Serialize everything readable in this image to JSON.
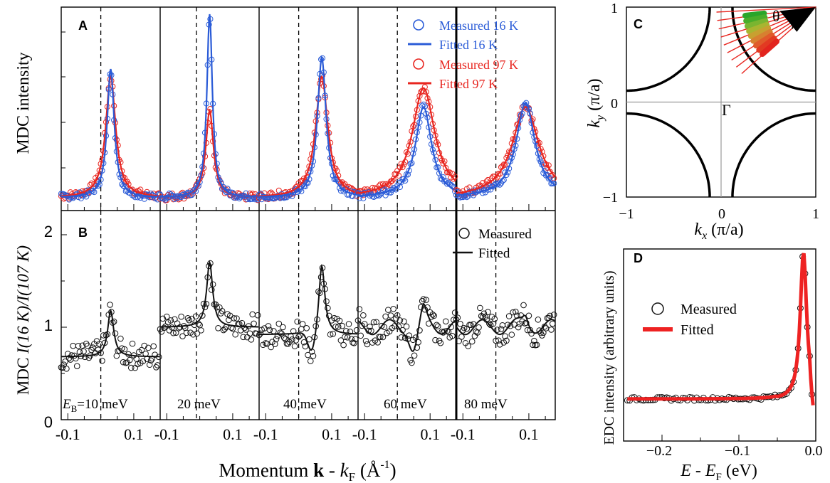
{
  "colors": {
    "measured_16k": "#2a5bd7",
    "measured_97k": "#e8251f",
    "fitted_black": "#111111",
    "edc_fit": "#ee2222"
  },
  "panel_a": {
    "label": "A",
    "ylabel": "MDC intensity",
    "legend": [
      "Measured 16 K",
      "Fitted 16 K",
      "Measured 97 K",
      "Fitted 97 K"
    ],
    "subpanels": [
      {
        "x_center": 0.0,
        "peak_16k": 0.68,
        "peak_97k": 0.64,
        "width": 0.013,
        "dashed_at": 0.0
      },
      {
        "x_center": 0.0,
        "peak_16k": 0.97,
        "peak_97k": 0.46,
        "width": 0.01,
        "dashed_at": -0.01
      },
      {
        "x_center": 0.04,
        "peak_16k": 0.74,
        "peak_97k": 0.64,
        "width": 0.016,
        "dashed_at": 0.0
      },
      {
        "x_center": 0.05,
        "peak_16k": 0.48,
        "peak_97k": 0.58,
        "width": 0.03,
        "dashed_at": 0.0
      },
      {
        "x_center": 0.06,
        "peak_16k": 0.5,
        "peak_97k": 0.48,
        "width": 0.035,
        "dashed_at": 0.0
      }
    ]
  },
  "panel_b": {
    "label": "B",
    "ylabel_prefix": "MDC ",
    "ylabel_math": "I(16 K)/I(107 K)",
    "yticks": [
      "0",
      "1",
      "2"
    ],
    "legend": [
      "Measured",
      "Fitted"
    ],
    "energy_labels": [
      "E",
      "B",
      "=10 meV",
      "20 meV",
      "40 meV",
      "60 meV",
      "80 meV"
    ]
  },
  "shared_x": {
    "xlabel_main": "Momentum ",
    "xlabel_bold": "k",
    "xlabel_rest": " - k",
    "xlabel_sub": "F",
    "xlabel_unit": " (Å",
    "xlabel_exp": "-1",
    "xlabel_close": ")",
    "ticks": [
      "-0.1",
      "0.1"
    ]
  },
  "panel_c": {
    "label": "C",
    "xlabel": "k",
    "xlabel_sub": "x",
    "xlabel_unit": " (π/a)",
    "ylabel": "k",
    "ylabel_sub": "y",
    "ylabel_unit": " (π/a)",
    "xticks": [
      "−1",
      "0",
      "1"
    ],
    "yticks": [
      "1",
      "0",
      "−1"
    ],
    "theta_label": "θ",
    "gamma_label": "Γ"
  },
  "panel_d": {
    "label": "D",
    "ylabel": "EDC intensity (arbitrary units)",
    "xlabel": "E - E",
    "xlabel_sub": "F",
    "xlabel_unit": " (eV)",
    "xticks": [
      "−0.2",
      "−0.1",
      "0.0"
    ],
    "legend": [
      "Measured",
      "Fitted"
    ]
  },
  "chart_data": [
    {
      "type": "line",
      "panel": "A",
      "title": "",
      "ylabel": "MDC intensity",
      "xlabel": "Momentum k - kF (Å^-1)",
      "series": [
        {
          "name": "Measured 16 K"
        },
        {
          "name": "Fitted 16 K"
        },
        {
          "name": "Measured 97 K"
        },
        {
          "name": "Fitted 97 K"
        }
      ],
      "subpanel_energies_meV": [
        10,
        20,
        40,
        60,
        80
      ]
    },
    {
      "type": "line",
      "panel": "B",
      "ylabel": "MDC I(16 K)/I(107 K)",
      "ylim": [
        0,
        2.2
      ],
      "series": [
        {
          "name": "Measured"
        },
        {
          "name": "Fitted"
        }
      ]
    },
    {
      "type": "scatter",
      "panel": "C",
      "xlabel": "kx (π/a)",
      "ylabel": "ky (π/a)",
      "xlim": [
        -1,
        1
      ],
      "ylim": [
        -1,
        1
      ]
    },
    {
      "type": "line",
      "panel": "D",
      "ylabel": "EDC intensity (arbitrary units)",
      "xlabel": "E - EF (eV)",
      "xlim": [
        -0.25,
        0.0
      ],
      "series": [
        {
          "name": "Measured"
        },
        {
          "name": "Fitted"
        }
      ]
    }
  ]
}
